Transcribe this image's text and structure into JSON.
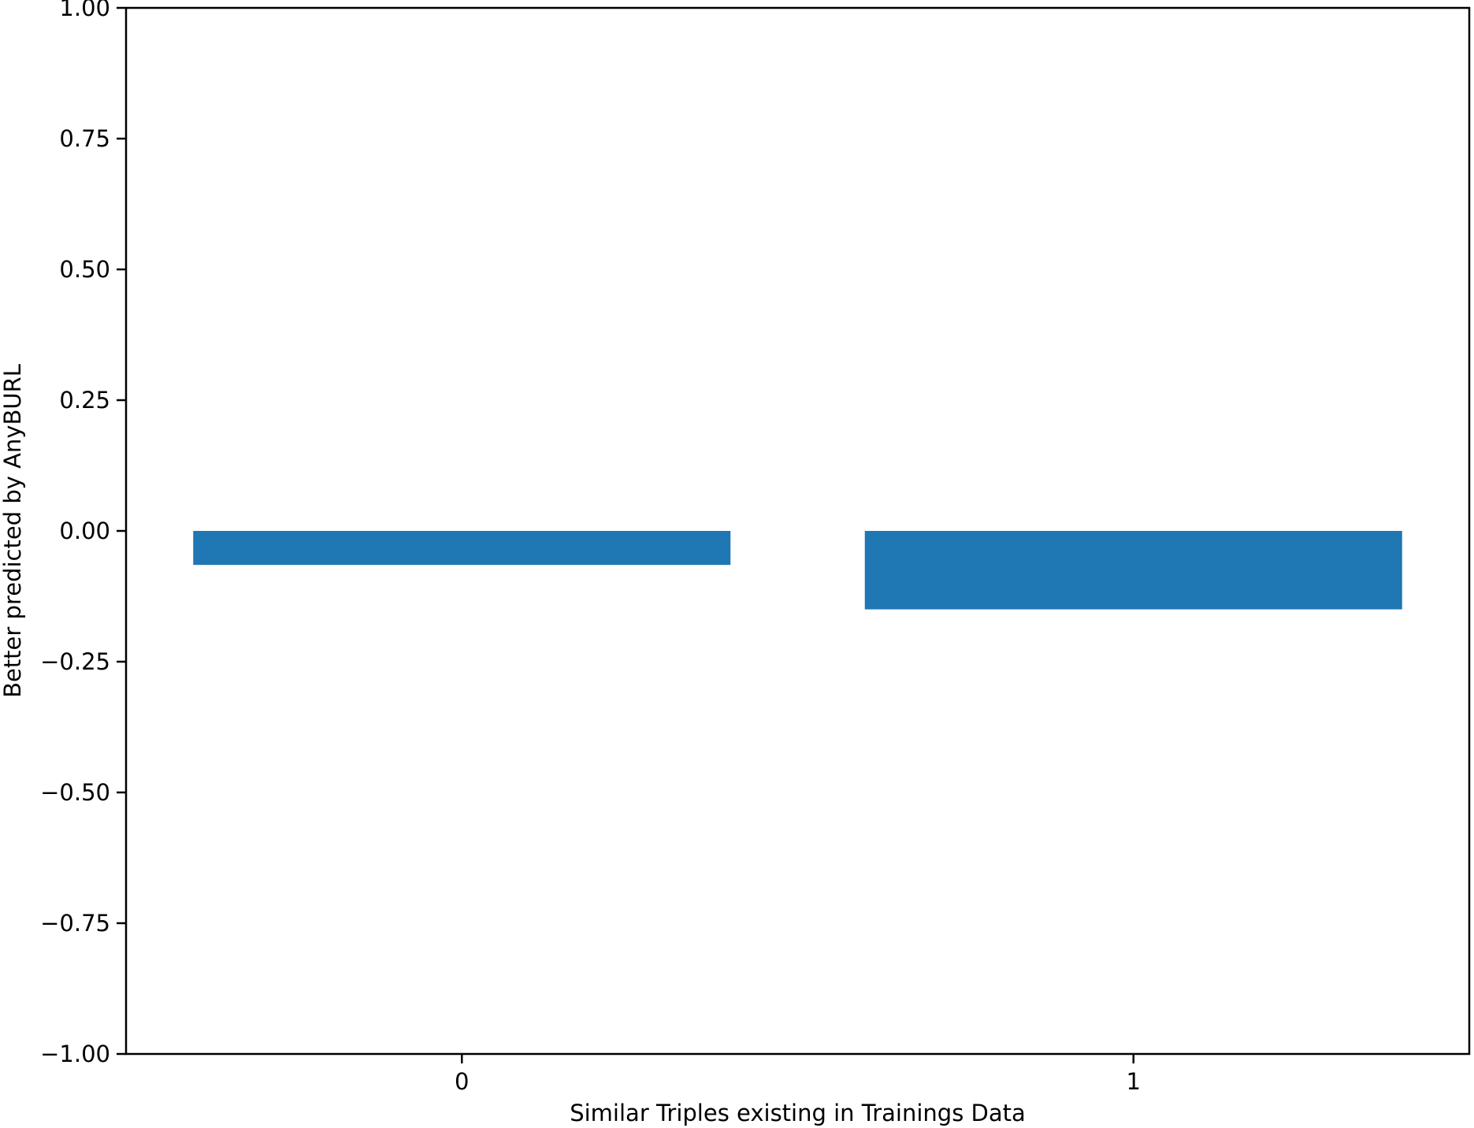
{
  "chart_data": {
    "type": "bar",
    "categories": [
      "0",
      "1"
    ],
    "values": [
      -0.065,
      -0.15
    ],
    "xlabel": "Similar Triples existing in Trainings Data",
    "ylabel": "Better predicted by AnyBURL",
    "ylim": [
      -1.0,
      1.0
    ],
    "yticks": [
      1.0,
      0.75,
      0.5,
      0.25,
      0.0,
      -0.25,
      -0.5,
      -0.75,
      -1.0
    ],
    "ytick_labels": [
      "1.00",
      "0.75",
      "0.50",
      "0.25",
      "0.00",
      "−0.25",
      "−0.50",
      "−0.75",
      "−1.00"
    ],
    "grid": false,
    "legend": "none",
    "bar_color": "#1f77b4"
  }
}
